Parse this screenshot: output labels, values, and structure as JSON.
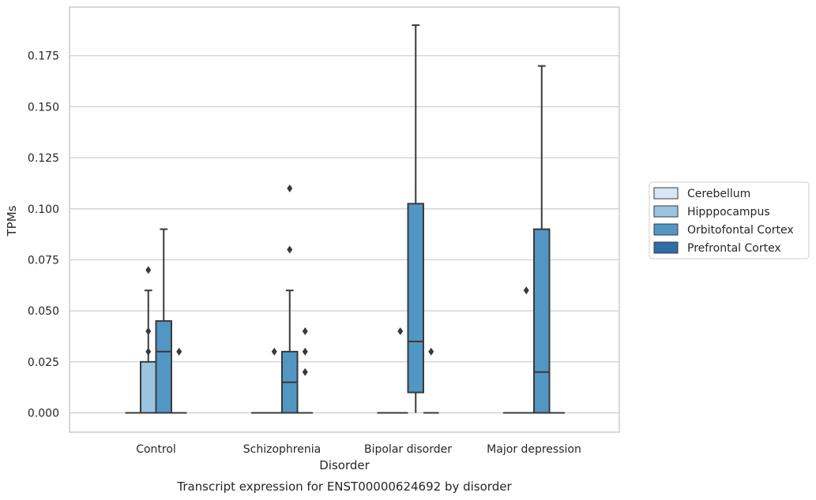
{
  "chart_data": {
    "type": "box",
    "title": "",
    "caption": "Transcript expression for ENST00000624692 by disorder",
    "xlabel": "Disorder",
    "ylabel": "TPMs",
    "ylim": [
      -0.0095,
      0.199
    ],
    "yticks": [
      "0.000",
      "0.025",
      "0.050",
      "0.075",
      "0.100",
      "0.125",
      "0.150",
      "0.175"
    ],
    "grid": "horizontal",
    "legend_position": "right",
    "categories": [
      "Control",
      "Schizophrenia",
      "Bipolar disorder",
      "Major depression"
    ],
    "series": [
      {
        "name": "Cerebellum",
        "color": "#d6e6f4",
        "boxes": [
          {
            "q1": 0,
            "median": 0,
            "q3": 0,
            "whisker_low": 0,
            "whisker_high": 0,
            "outliers": []
          },
          {
            "q1": 0,
            "median": 0,
            "q3": 0,
            "whisker_low": 0,
            "whisker_high": 0,
            "outliers": []
          },
          {
            "q1": 0,
            "median": 0,
            "q3": 0,
            "whisker_low": 0,
            "whisker_high": 0,
            "outliers": []
          },
          {
            "q1": 0,
            "median": 0,
            "q3": 0,
            "whisker_low": 0,
            "whisker_high": 0,
            "outliers": []
          }
        ]
      },
      {
        "name": "Hipppocampus",
        "color": "#9ac4e0",
        "boxes": [
          {
            "q1": 0,
            "median": 0,
            "q3": 0.025,
            "whisker_low": 0,
            "whisker_high": 0.06,
            "outliers": [
              0.03,
              0.04,
              0.07
            ]
          },
          {
            "q1": 0,
            "median": 0,
            "q3": 0,
            "whisker_low": 0,
            "whisker_high": 0,
            "outliers": [
              0.03
            ]
          },
          {
            "q1": 0,
            "median": 0,
            "q3": 0,
            "whisker_low": 0,
            "whisker_high": 0,
            "outliers": [
              0.04
            ]
          },
          {
            "q1": 0,
            "median": 0,
            "q3": 0,
            "whisker_low": 0,
            "whisker_high": 0,
            "outliers": [
              0.06
            ]
          }
        ]
      },
      {
        "name": "Orbitofontal Cortex",
        "color": "#5296c4",
        "boxes": [
          {
            "q1": 0,
            "median": 0.03,
            "q3": 0.045,
            "whisker_low": 0,
            "whisker_high": 0.09,
            "outliers": []
          },
          {
            "q1": 0,
            "median": 0.015,
            "q3": 0.03,
            "whisker_low": 0,
            "whisker_high": 0.06,
            "outliers": [
              0.08,
              0.11
            ]
          },
          {
            "q1": 0.01,
            "median": 0.035,
            "q3": 0.1025,
            "whisker_low": 0,
            "whisker_high": 0.19,
            "outliers": []
          },
          {
            "q1": 0,
            "median": 0.02,
            "q3": 0.09,
            "whisker_low": 0,
            "whisker_high": 0.17,
            "outliers": []
          }
        ]
      },
      {
        "name": "Prefrontal Cortex",
        "color": "#2d6ea8",
        "boxes": [
          {
            "q1": 0,
            "median": 0,
            "q3": 0,
            "whisker_low": 0,
            "whisker_high": 0,
            "outliers": [
              0.03
            ]
          },
          {
            "q1": 0,
            "median": 0,
            "q3": 0,
            "whisker_low": 0,
            "whisker_high": 0,
            "outliers": [
              0.02,
              0.03,
              0.04
            ]
          },
          {
            "q1": 0,
            "median": 0,
            "q3": 0,
            "whisker_low": 0,
            "whisker_high": 0,
            "outliers": [
              0.03
            ]
          },
          {
            "q1": 0,
            "median": 0,
            "q3": 0,
            "whisker_low": 0,
            "whisker_high": 0,
            "outliers": []
          }
        ]
      }
    ],
    "colors": {
      "grid": "#cccccc",
      "frame": "#cccccc",
      "line": "#3a3a3a"
    }
  }
}
